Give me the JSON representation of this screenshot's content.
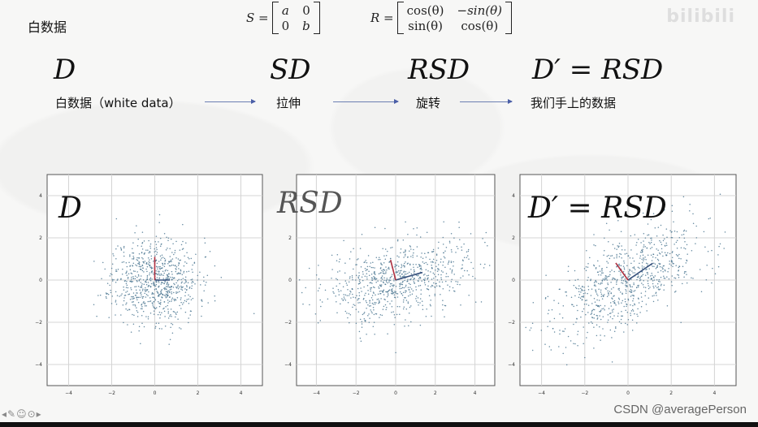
{
  "slide": {
    "title": "白数据",
    "logo": "bilibili",
    "watermark": "CSDN @averagePerson",
    "nav_icons": "◂✎☺⊙▸"
  },
  "formulas": {
    "S": {
      "lhs": "S =",
      "cells": [
        "a",
        "0",
        "0",
        "b"
      ]
    },
    "R": {
      "lhs": "R =",
      "cells": [
        "cos(θ)",
        "−sin(θ)",
        "sin(θ)",
        "cos(θ)"
      ]
    }
  },
  "pipeline": {
    "math": [
      "D",
      "SD",
      "RSD",
      "D′ = RSD"
    ],
    "labels": [
      "白数据（white data）",
      "拉伸",
      "旋转",
      "我们手上的数据"
    ]
  },
  "plots": [
    {
      "title": "D",
      "panel": "white",
      "scale": [
        1,
        1
      ],
      "angle_deg": 0,
      "title_faded": false
    },
    {
      "title": "RSD",
      "panel": "stretched-rotated",
      "scale": [
        2.0,
        0.9
      ],
      "angle_deg": 15,
      "title_faded": true
    },
    {
      "title": "D′ = RSD",
      "panel": "final",
      "scale": [
        2.0,
        0.9
      ],
      "angle_deg": 35,
      "title_faded": false
    }
  ],
  "axis_ticks": {
    "x": [
      "−4",
      "−2",
      "0",
      "2",
      "4"
    ],
    "y": [
      "4",
      "2",
      "0",
      "−2",
      "−4"
    ]
  },
  "colors": {
    "points": "#4a7590",
    "axis_red": "#b03040",
    "axis_blue": "#344e7a",
    "arrow": "#4a5ea7"
  }
}
